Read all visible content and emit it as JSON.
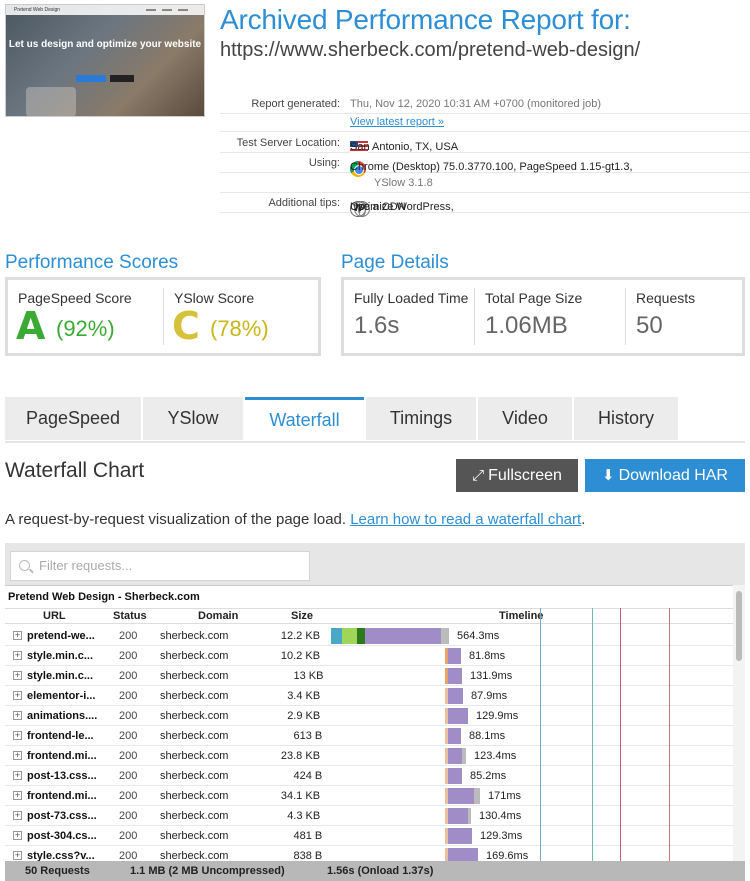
{
  "header": {
    "title": "Archived Performance Report for:",
    "url": "https://www.sherbeck.com/pretend-web-design/",
    "thumbnail": {
      "site_name": "Pretend Web Design",
      "hero_text": "Let us design and optimize your website"
    }
  },
  "meta": {
    "report_generated_label": "Report generated:",
    "report_generated_value": "Thu, Nov 12, 2020 10:31 AM +0700 (monitored job)",
    "view_latest": "View latest report »",
    "location_label": "Test Server Location:",
    "location_value": "San Antonio, TX, USA",
    "using_label": "Using:",
    "using_line1": "Chrome (Desktop) 75.0.3770.100, PageSpeed 1.15-gt1.3,",
    "using_line2": "YSlow 3.1.8",
    "tips_label": "Additional tips:",
    "tip1": "Optimize WordPress,",
    "tip2": "Use a CDN"
  },
  "scores": {
    "section_title": "Performance Scores",
    "pagespeed_label": "PageSpeed Score",
    "pagespeed_grade": "A",
    "pagespeed_pct": "(92%)",
    "yslow_label": "YSlow Score",
    "yslow_grade": "C",
    "yslow_pct": "(78%)",
    "colors": {
      "green": "#3aaa35",
      "yellow": "#c8b51a"
    }
  },
  "details": {
    "section_title": "Page Details",
    "loaded_label": "Fully Loaded Time",
    "loaded_value": "1.6s",
    "size_label": "Total Page Size",
    "size_value": "1.06MB",
    "requests_label": "Requests",
    "requests_value": "50"
  },
  "tabs": [
    {
      "label": "PageSpeed"
    },
    {
      "label": "YSlow"
    },
    {
      "label": "Waterfall"
    },
    {
      "label": "Timings"
    },
    {
      "label": "Video"
    },
    {
      "label": "History"
    }
  ],
  "waterfall": {
    "title": "Waterfall Chart",
    "fullscreen_label": "Fullscreen",
    "download_label": "Download HAR",
    "desc_text": "A request-by-request visualization of the page load. ",
    "desc_link": "Learn how to read a waterfall chart",
    "desc_end": ".",
    "filter_placeholder": "Filter requests...",
    "page_name": "Pretend Web Design - Sherbeck.com",
    "columns": {
      "url": "URL",
      "status": "Status",
      "domain": "Domain",
      "size": "Size",
      "timeline": "Timeline"
    },
    "rows": [
      {
        "url": "pretend-we...",
        "status": "200",
        "domain": "sherbeck.com",
        "size": "12.2 KB",
        "time": "564.3ms"
      },
      {
        "url": "style.min.c...",
        "status": "200",
        "domain": "sherbeck.com",
        "size": "10.2 KB",
        "time": "81.8ms"
      },
      {
        "url": "style.min.c...",
        "status": "200",
        "domain": "sherbeck.com",
        "size": "13 KB",
        "time": "131.9ms"
      },
      {
        "url": "elementor-i...",
        "status": "200",
        "domain": "sherbeck.com",
        "size": "3.4 KB",
        "time": "87.9ms"
      },
      {
        "url": "animations....",
        "status": "200",
        "domain": "sherbeck.com",
        "size": "2.9 KB",
        "time": "129.9ms"
      },
      {
        "url": "frontend-le...",
        "status": "200",
        "domain": "sherbeck.com",
        "size": "613 B",
        "time": "88.1ms"
      },
      {
        "url": "frontend.mi...",
        "status": "200",
        "domain": "sherbeck.com",
        "size": "23.8 KB",
        "time": "123.4ms"
      },
      {
        "url": "post-13.css...",
        "status": "200",
        "domain": "sherbeck.com",
        "size": "424 B",
        "time": "85.2ms"
      },
      {
        "url": "frontend.mi...",
        "status": "200",
        "domain": "sherbeck.com",
        "size": "34.1 KB",
        "time": "171ms"
      },
      {
        "url": "post-73.css...",
        "status": "200",
        "domain": "sherbeck.com",
        "size": "4.3 KB",
        "time": "130.4ms"
      },
      {
        "url": "post-304.cs...",
        "status": "200",
        "domain": "sherbeck.com",
        "size": "481 B",
        "time": "129.3ms"
      },
      {
        "url": "style.css?v...",
        "status": "200",
        "domain": "sherbeck.com",
        "size": "838 B",
        "time": "169.6ms"
      }
    ],
    "footer": {
      "requests": "50 Requests",
      "size": "1.1 MB  (2 MB Uncompressed)",
      "time": "1.56s  (Onload 1.37s)"
    }
  }
}
